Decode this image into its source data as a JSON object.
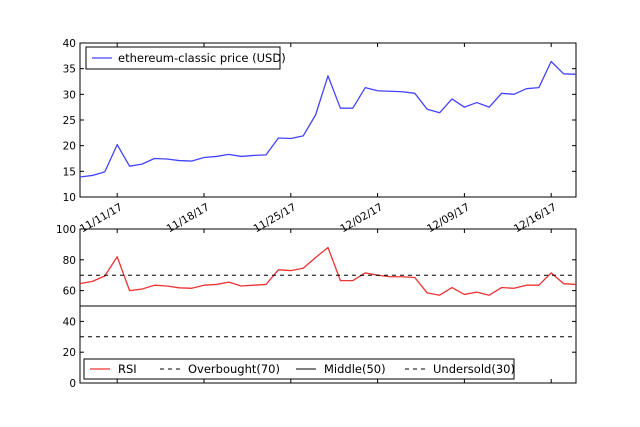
{
  "chart_data": [
    {
      "type": "line",
      "title": "",
      "xlabel": "",
      "ylabel": "",
      "ylim": [
        10,
        40
      ],
      "yticks": [
        "10",
        "15",
        "20",
        "25",
        "30",
        "35",
        "40"
      ],
      "x_dates": [
        "11/08/17",
        "11/09/17",
        "11/10/17",
        "11/11/17",
        "11/12/17",
        "11/13/17",
        "11/14/17",
        "11/15/17",
        "11/16/17",
        "11/17/17",
        "11/18/17",
        "11/19/17",
        "11/20/17",
        "11/21/17",
        "11/22/17",
        "11/23/17",
        "11/24/17",
        "11/25/17",
        "11/26/17",
        "11/27/17",
        "11/28/17",
        "11/29/17",
        "11/30/17",
        "12/01/17",
        "12/02/17",
        "12/03/17",
        "12/04/17",
        "12/05/17",
        "12/06/17",
        "12/07/17",
        "12/08/17",
        "12/09/17",
        "12/10/17",
        "12/11/17",
        "12/12/17",
        "12/13/17",
        "12/14/17",
        "12/15/17",
        "12/16/17",
        "12/17/17",
        "12/18/17"
      ],
      "xticks": [
        "11/11/17",
        "11/18/17",
        "11/25/17",
        "12/02/17",
        "12/09/17",
        "12/16/17"
      ],
      "xtick_dates": [
        "11/11/17",
        "11/18/17",
        "11/25/17",
        "12/02/17",
        "12/09/17",
        "12/16/17"
      ],
      "grid": false,
      "legend_position": "top-left",
      "series": [
        {
          "name": "ethereum-classic price (USD)",
          "color": "#4444ff",
          "values": [
            13.9,
            14.2,
            14.9,
            20.2,
            16.0,
            16.4,
            17.5,
            17.4,
            17.1,
            17.0,
            17.7,
            17.9,
            18.3,
            17.9,
            18.1,
            18.2,
            21.5,
            21.4,
            21.9,
            26.0,
            33.6,
            27.3,
            27.3,
            31.3,
            30.7,
            30.6,
            30.5,
            30.2,
            27.1,
            26.4,
            29.1,
            27.5,
            28.4,
            27.5,
            30.2,
            30.0,
            31.1,
            31.3,
            36.4,
            34.0,
            33.9
          ]
        }
      ]
    },
    {
      "type": "line",
      "title": "",
      "xlabel": "",
      "ylabel": "",
      "ylim": [
        0,
        100
      ],
      "yticks": [
        "0",
        "20",
        "40",
        "60",
        "80",
        "100"
      ],
      "grid": false,
      "legend_position": "bottom",
      "series": [
        {
          "name": "RSI",
          "color": "#ee3333",
          "values": [
            64.5,
            66.0,
            69.5,
            82.0,
            60.0,
            61.0,
            63.5,
            63.0,
            61.8,
            61.5,
            63.5,
            64.0,
            65.5,
            63.0,
            63.5,
            64.0,
            73.5,
            73.0,
            74.5,
            81.5,
            88.0,
            66.5,
            66.5,
            71.5,
            70.0,
            69.0,
            69.0,
            68.5,
            58.5,
            57.0,
            62.0,
            57.5,
            59.0,
            57.0,
            62.0,
            61.5,
            63.5,
            63.5,
            71.5,
            64.5,
            64.0
          ]
        },
        {
          "name": "Overbought(70)",
          "style": "dashed",
          "color": "#000000",
          "value": 70
        },
        {
          "name": "Middle(50)",
          "style": "solid",
          "color": "#000000",
          "value": 50
        },
        {
          "name": "Undersold(30)",
          "style": "dashed",
          "color": "#000000",
          "value": 30
        }
      ]
    }
  ]
}
